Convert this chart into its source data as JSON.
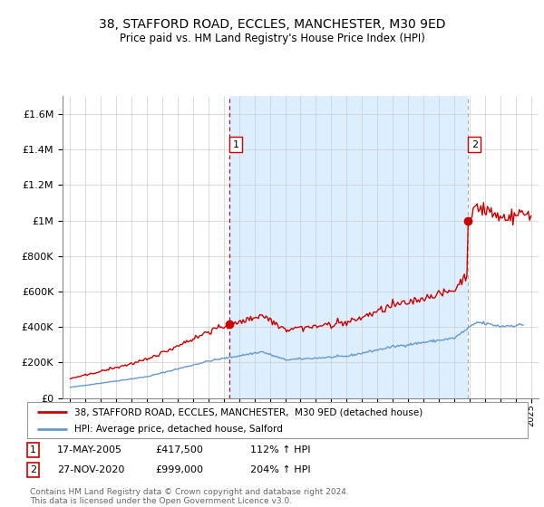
{
  "title": "38, STAFFORD ROAD, ECCLES, MANCHESTER, M30 9ED",
  "subtitle": "Price paid vs. HM Land Registry's House Price Index (HPI)",
  "legend_line1": "38, STAFFORD ROAD, ECCLES, MANCHESTER,  M30 9ED (detached house)",
  "legend_line2": "HPI: Average price, detached house, Salford",
  "table_rows": [
    {
      "num": "1",
      "date": "17-MAY-2005",
      "price": "£417,500",
      "hpi": "112% ↑ HPI"
    },
    {
      "num": "2",
      "date": "27-NOV-2020",
      "price": "£999,000",
      "hpi": "204% ↑ HPI"
    }
  ],
  "footer": "Contains HM Land Registry data © Crown copyright and database right 2024.\nThis data is licensed under the Open Government Licence v3.0.",
  "sale1_year": 2005.37,
  "sale1_price": 417500,
  "sale2_year": 2020.91,
  "sale2_price": 999000,
  "red_color": "#cc0000",
  "blue_color": "#6699cc",
  "shade_color": "#ddeeff",
  "ylim": [
    0,
    1700000
  ],
  "yticks": [
    0,
    200000,
    400000,
    600000,
    800000,
    1000000,
    1200000,
    1400000,
    1600000
  ],
  "xlim_left": 1994.5,
  "xlim_right": 2025.5
}
